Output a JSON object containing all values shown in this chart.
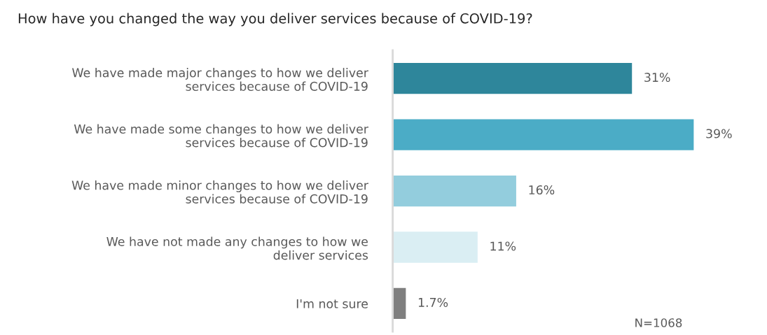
{
  "chart_data": {
    "type": "bar",
    "orientation": "horizontal",
    "title": "How have you changed the way you deliver services because of COVID-19?",
    "categories": [
      "We have made major changes to how we deliver\nservices because of COVID-19",
      "We have made some changes to how we deliver\nservices because of COVID-19",
      "We have made minor changes to how we deliver\nservices because of COVID-19",
      "We have not made any changes to how we\ndeliver services",
      "I'm not sure"
    ],
    "values": [
      31,
      39,
      16,
      11,
      1.7
    ],
    "colors": [
      "#2e869b",
      "#4bacc6",
      "#93cddd",
      "#daeef3",
      "#7f7f7f"
    ],
    "value_labels": [
      "31%",
      "39%",
      "16%",
      "11%",
      "1.7%"
    ],
    "grid": false,
    "legend": false,
    "annotations": [
      "N=1068"
    ]
  }
}
